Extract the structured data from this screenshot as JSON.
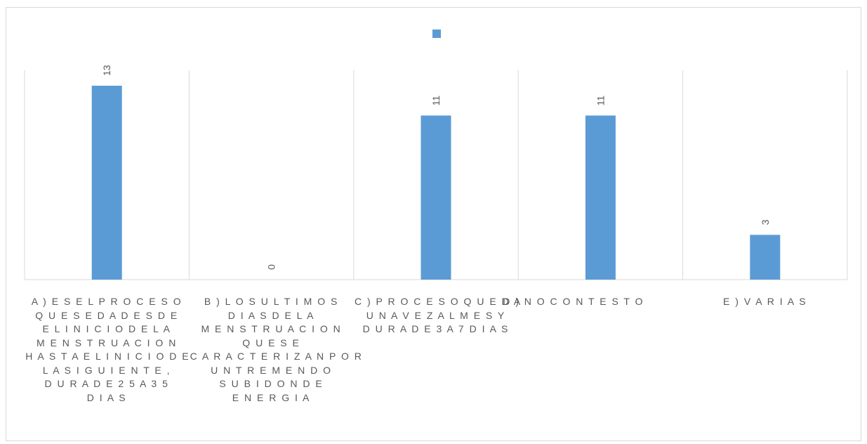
{
  "chart_data": {
    "type": "bar",
    "title": "",
    "xlabel": "",
    "ylabel": "",
    "ylim": [
      0,
      15
    ],
    "grid": false,
    "legend": "top-center",
    "bar_color": "#5b9bd5",
    "categories": [
      "A) ES EL PROCESO QUE SE DA DESDE EL INICIO DE LA MENSTRUACION HASTA EL INICIO DE LA SIGUIENTE, DURA DE 25 A 35 DIAS",
      "B) LOS ULTIMOS DIAS DE LA MENSTRUACION QUE SE CARACTERIZAN POR UN TREMENDO SUBIDON DE ENERGIA",
      "C) PROCESO QUE DA UNA VEZ AL MES Y DURA DE 3 A 7 DIAS",
      "D) NO CONTESTO",
      "E) VARIAS"
    ],
    "category_lines": [
      [
        "A ) E S E L P R O C E S O",
        "Q U E S E D A  D E S D E",
        "E L I N I C I O D E L A",
        "M E N S T R U A C I O N",
        "H A S T A E L I N I C I O D E",
        "L A  S I G U I E N T E ,",
        "D U R A  D E  2 5  A  3 5",
        "D I A S"
      ],
      [
        "B ) L O S U L T I M O S",
        "D I A S D E L A",
        "M E N S T R U A C I O N",
        "Q U E S E",
        "C A R A C T E R I Z A N P O R",
        "U N T R E M E N D O",
        "S U B I D O N D E",
        "E N E R G I A"
      ],
      [
        "C ) P R O C E S O Q U E D A",
        "U N A V E Z A L M E S Y",
        "D U R A D E 3 A 7 D I A S"
      ],
      [
        "D ) N O C O N T E S T O"
      ],
      [
        "E ) V A R I A S"
      ]
    ],
    "series": [
      {
        "values": [
          13,
          0,
          11,
          11,
          3
        ]
      }
    ],
    "data_labels": [
      "13",
      "0",
      "11",
      "11",
      "3"
    ]
  }
}
